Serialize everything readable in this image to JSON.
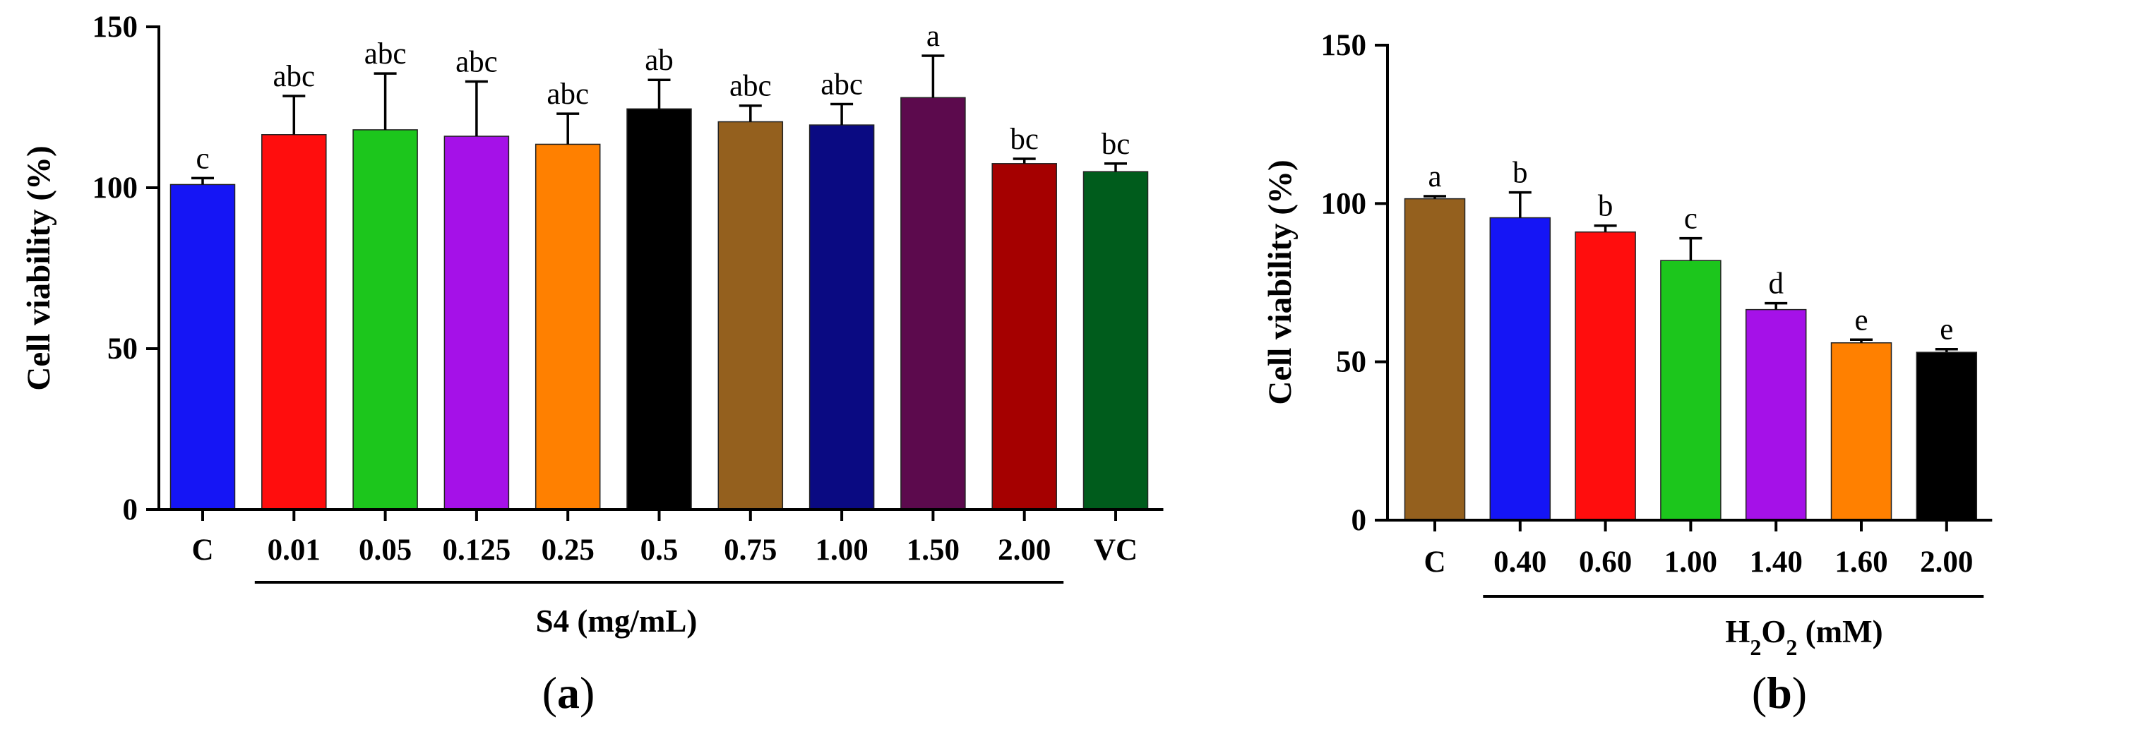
{
  "chart_data": [
    {
      "type": "bar",
      "panel": "a",
      "ylabel": "Cell viability (%)",
      "xlabel": "S4 (mg/mL)",
      "ylim": [
        0,
        150
      ],
      "yticks": [
        0,
        50,
        100,
        150
      ],
      "bracket_from": 1,
      "bracket_to": 9,
      "categories": [
        "C",
        "0.01",
        "0.05",
        "0.125",
        "0.25",
        "0.5",
        "0.75",
        "1.00",
        "1.50",
        "2.00",
        "VC"
      ],
      "values": [
        101,
        116.5,
        118,
        116,
        113.5,
        124.5,
        120.5,
        119.5,
        128,
        107.5,
        105
      ],
      "errors": [
        2,
        12,
        17.5,
        17,
        9.5,
        9,
        5,
        6.5,
        13,
        1.5,
        2.5
      ],
      "labels": [
        "c",
        "abc",
        "abc",
        "abc",
        "abc",
        "ab",
        "abc",
        "abc",
        "a",
        "bc",
        "bc"
      ],
      "colors": [
        "#1515F5",
        "#FF0D0D",
        "#1CC61C",
        "#A511E8",
        "#FF8000",
        "#000000",
        "#94601E",
        "#0A0A82",
        "#5C0A4D",
        "#A50000",
        "#005C1C"
      ]
    },
    {
      "type": "bar",
      "panel": "b",
      "ylabel": "Cell viability (%)",
      "xlabel": {
        "base1": "H",
        "sub1": "2",
        "base2": "O",
        "sub2": "2",
        "rest": " (mM)"
      },
      "ylim": [
        0,
        150
      ],
      "yticks": [
        0,
        50,
        100,
        150
      ],
      "bracket_from": 1,
      "bracket_to": 6,
      "categories": [
        "C",
        "0.40",
        "0.60",
        "1.00",
        "1.40",
        "1.60",
        "2.00"
      ],
      "values": [
        101.5,
        95.5,
        91,
        82,
        66.5,
        56,
        53
      ],
      "errors": [
        0.8,
        8,
        2,
        7,
        2,
        1,
        1
      ],
      "labels": [
        "a",
        "b",
        "b",
        "c",
        "d",
        "e",
        "e"
      ],
      "colors": [
        "#94601E",
        "#1515F5",
        "#FF0D0D",
        "#1CC61C",
        "#A511E8",
        "#FF8000",
        "#000000"
      ]
    }
  ],
  "panels": {
    "a_open": "(",
    "a_letter": "a",
    "a_close": ")",
    "b_open": "(",
    "b_letter": "b",
    "b_close": ")"
  }
}
